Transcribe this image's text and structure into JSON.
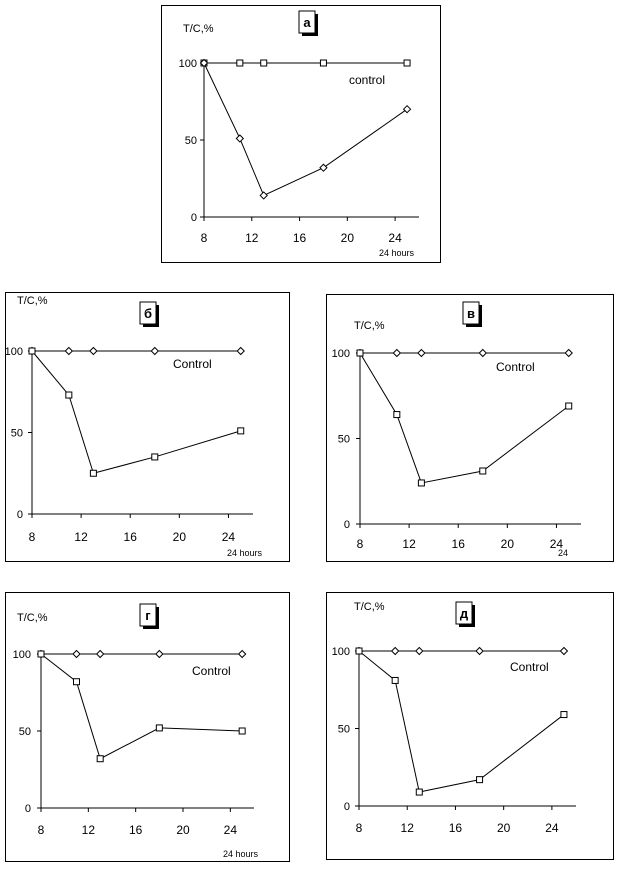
{
  "chart_data": [
    {
      "type": "line",
      "panel_label": "а",
      "ylabel": "T/C,%",
      "xlabel": "24 hours",
      "x_ticks": [
        8,
        12,
        16,
        20,
        24
      ],
      "y_ticks": [
        0,
        50,
        100
      ],
      "xlim": [
        8,
        26
      ],
      "ylim": [
        0,
        100
      ],
      "annotation": "control",
      "series": [
        {
          "x": [
            8,
            11,
            13,
            18,
            25
          ],
          "values": [
            100,
            100,
            100,
            100,
            100
          ],
          "marker": "square"
        },
        {
          "x": [
            8,
            11,
            13,
            18,
            25
          ],
          "values": [
            100,
            51,
            14,
            32,
            70
          ],
          "marker": "diamond"
        }
      ]
    },
    {
      "type": "line",
      "panel_label": "б",
      "ylabel": "T/C,%",
      "xlabel": "24 hours",
      "x_ticks": [
        8,
        12,
        16,
        20,
        24
      ],
      "y_ticks": [
        0,
        50,
        100
      ],
      "xlim": [
        8,
        26
      ],
      "ylim": [
        0,
        100
      ],
      "annotation": "Control",
      "series": [
        {
          "x": [
            8,
            11,
            13,
            18,
            25
          ],
          "values": [
            100,
            100,
            100,
            100,
            100
          ],
          "marker": "diamond"
        },
        {
          "x": [
            8,
            11,
            13,
            18,
            25
          ],
          "values": [
            100,
            73,
            25,
            35,
            51
          ],
          "marker": "square"
        }
      ]
    },
    {
      "type": "line",
      "panel_label": "в",
      "ylabel": "T/C,%",
      "xlabel": "24",
      "x_ticks": [
        8,
        12,
        16,
        20,
        24
      ],
      "y_ticks": [
        0,
        50,
        100
      ],
      "xlim": [
        8,
        26
      ],
      "ylim": [
        0,
        100
      ],
      "annotation": "Control",
      "series": [
        {
          "x": [
            8,
            11,
            13,
            18,
            25
          ],
          "values": [
            100,
            100,
            100,
            100,
            100
          ],
          "marker": "diamond"
        },
        {
          "x": [
            8,
            11,
            13,
            18,
            25
          ],
          "values": [
            100,
            64,
            24,
            31,
            69
          ],
          "marker": "square"
        }
      ]
    },
    {
      "type": "line",
      "panel_label": "г",
      "ylabel": "T/C,%",
      "xlabel": "24 hours",
      "x_ticks": [
        8,
        12,
        16,
        20,
        24
      ],
      "y_ticks": [
        0,
        50,
        100
      ],
      "xlim": [
        8,
        26
      ],
      "ylim": [
        0,
        100
      ],
      "annotation": "Control",
      "series": [
        {
          "x": [
            8,
            11,
            13,
            18,
            25
          ],
          "values": [
            100,
            100,
            100,
            100,
            100
          ],
          "marker": "diamond"
        },
        {
          "x": [
            8,
            11,
            13,
            18,
            25
          ],
          "values": [
            100,
            82,
            32,
            52,
            50
          ],
          "marker": "square"
        }
      ]
    },
    {
      "type": "line",
      "panel_label": "д",
      "ylabel": "T/C,%",
      "xlabel": "",
      "x_ticks": [
        8,
        12,
        16,
        20,
        24
      ],
      "y_ticks": [
        0,
        50,
        100
      ],
      "xlim": [
        8,
        26
      ],
      "ylim": [
        0,
        100
      ],
      "annotation": "Control",
      "series": [
        {
          "x": [
            8,
            11,
            13,
            18,
            25
          ],
          "values": [
            100,
            100,
            100,
            100,
            100
          ],
          "marker": "diamond"
        },
        {
          "x": [
            8,
            11,
            13,
            18,
            25
          ],
          "values": [
            100,
            81,
            9,
            17,
            59
          ],
          "marker": "square"
        }
      ]
    }
  ]
}
